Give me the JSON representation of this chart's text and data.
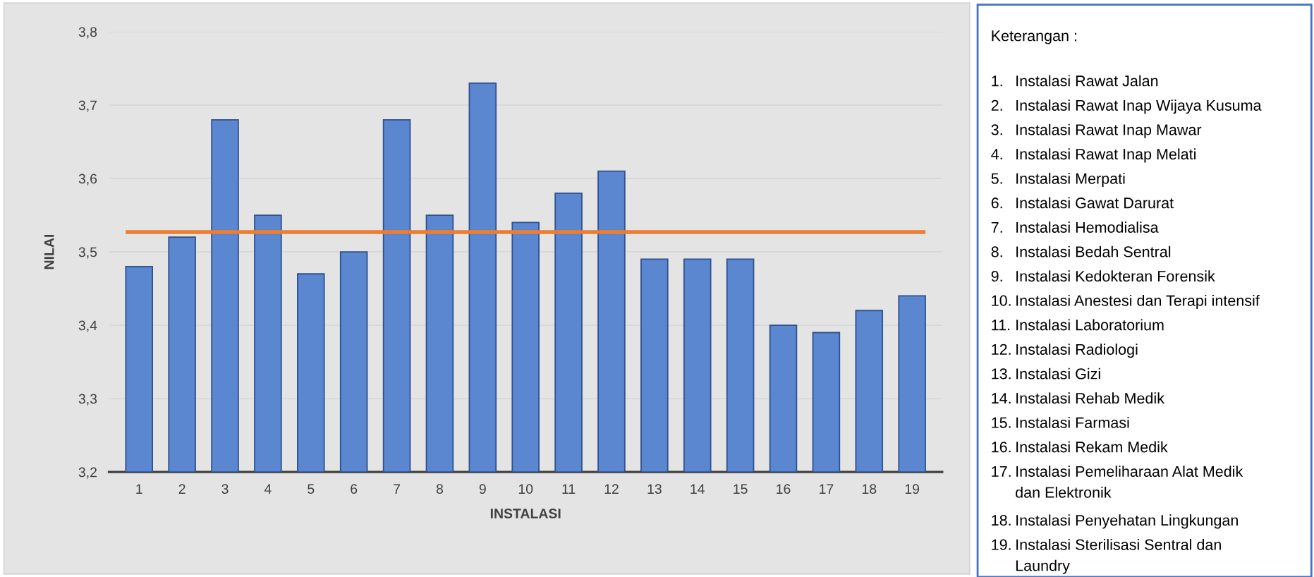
{
  "chart_data": {
    "type": "bar",
    "xlabel": "INSTALASI",
    "ylabel": "NILAI",
    "categories": [
      "1",
      "2",
      "3",
      "4",
      "5",
      "6",
      "7",
      "8",
      "9",
      "10",
      "11",
      "12",
      "13",
      "14",
      "15",
      "16",
      "17",
      "18",
      "19"
    ],
    "values": [
      3.48,
      3.52,
      3.68,
      3.55,
      3.47,
      3.5,
      3.68,
      3.55,
      3.73,
      3.54,
      3.58,
      3.61,
      3.49,
      3.49,
      3.49,
      3.4,
      3.39,
      3.42,
      3.44
    ],
    "color": "#5b87d1",
    "ylim": [
      3.2,
      3.8
    ],
    "yticks": [
      {
        "value": 3.2,
        "label": "3,2"
      },
      {
        "value": 3.3,
        "label": "3,3"
      },
      {
        "value": 3.4,
        "label": "3,4"
      },
      {
        "value": 3.5,
        "label": "3,5"
      },
      {
        "value": 3.6,
        "label": "3,6"
      },
      {
        "value": 3.7,
        "label": "3,7"
      },
      {
        "value": 3.8,
        "label": "3,8"
      }
    ],
    "grid": "y",
    "ref_lines": [
      {
        "axis": "y",
        "value": 3.527,
        "color": "#ed7d31"
      }
    ],
    "annotations": [
      "Keterangan :",
      "1.\tInstalasi Rawat Jalan",
      "2.\tInstalasi Rawat Inap Wijaya Kusuma",
      "3.\tInstalasi Rawat Inap Mawar",
      "4.\tInstalasi Rawat Inap Melati",
      "5.\tInstalasi Merpati",
      "6.\tInstalasi Gawat Darurat",
      "7.\tInstalasi Hemodialisa",
      "8.\tInstalasi Bedah Sentral",
      "9.\tInstalasi Kedokteran Forensik",
      "10.\tInstalasi Anestesi dan Terapi intensif",
      "11.\tInstalasi Laboratorium",
      "12.\tInstalasi Radiologi",
      "13.\tInstalasi Gizi",
      "14.\tInstalasi Rehab Medik",
      "15.\tInstalasi Farmasi",
      "16.\tInstalasi Rekam Medik",
      "17.\tInstalasi Pemeliharaan Alat Medik\ndan Elektronik",
      "18.\tInstalasi Penyehatan Lingkungan",
      "19.\tInstalasi Sterilisasi Sentral dan\nLaundry"
    ]
  }
}
